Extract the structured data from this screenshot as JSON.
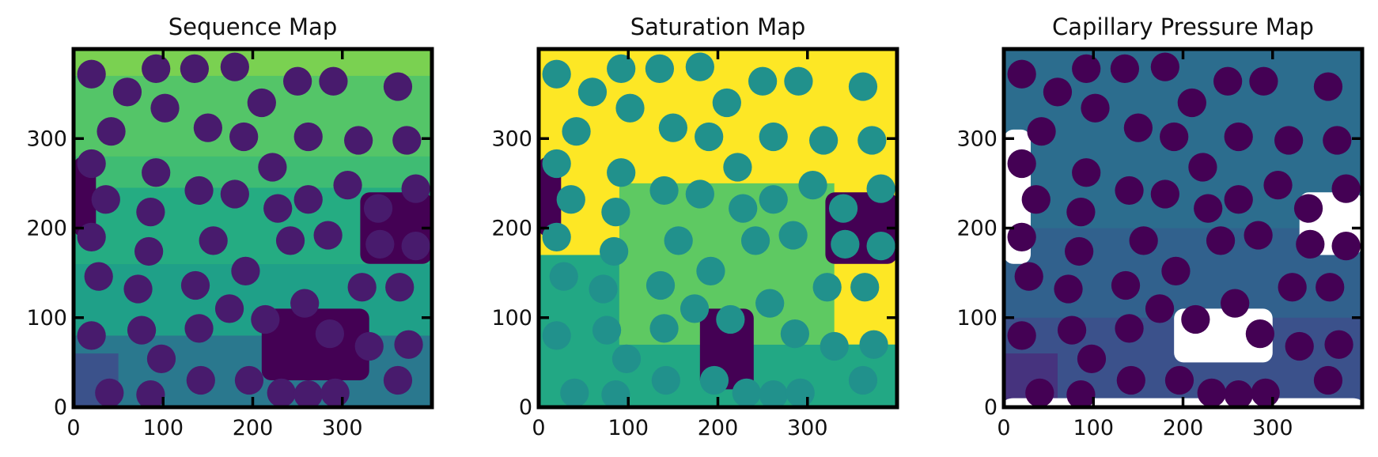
{
  "chart_data": [
    {
      "type": "heatmap",
      "title": "Sequence Map",
      "xlim": [
        0,
        400
      ],
      "ylim": [
        0,
        400
      ],
      "xticks": [
        0,
        100,
        200,
        300
      ],
      "yticks": [
        0,
        100,
        200,
        300
      ],
      "xtick_labels": [
        "0",
        "100",
        "200",
        "300"
      ],
      "ytick_labels": [
        "0",
        "100",
        "200",
        "300"
      ],
      "colormap": "viridis",
      "grid": false,
      "background_color": "#3fbc73",
      "grain_color": "#481b6d",
      "regions": [
        {
          "x": [
            0,
            400
          ],
          "y": [
            370,
            400
          ],
          "color": "#7ad151"
        },
        {
          "x": [
            0,
            400
          ],
          "y": [
            280,
            370
          ],
          "color": "#54c568"
        },
        {
          "x": [
            0,
            400
          ],
          "y": [
            160,
            245
          ],
          "color": "#25ac82"
        },
        {
          "x": [
            0,
            400
          ],
          "y": [
            80,
            160
          ],
          "color": "#1fa088"
        },
        {
          "x": [
            0,
            400
          ],
          "y": [
            0,
            80
          ],
          "color": "#2a788e"
        },
        {
          "x": [
            0,
            50
          ],
          "y": [
            0,
            60
          ],
          "color": "#3b528b"
        }
      ],
      "pores": [
        {
          "x": 0,
          "y": 190,
          "w": 25,
          "h": 90,
          "color": "#440154"
        },
        {
          "x": 210,
          "y": 30,
          "w": 120,
          "h": 80,
          "color": "#440154"
        },
        {
          "x": 320,
          "y": 160,
          "w": 80,
          "h": 80,
          "color": "#440154"
        }
      ]
    },
    {
      "type": "heatmap",
      "title": "Saturation Map",
      "xlim": [
        0,
        400
      ],
      "ylim": [
        0,
        400
      ],
      "xticks": [
        0,
        100,
        200,
        300
      ],
      "yticks": [
        0,
        100,
        200,
        300
      ],
      "xtick_labels": [
        "0",
        "100",
        "200",
        "300"
      ],
      "ytick_labels": [
        "0",
        "100",
        "200",
        "300"
      ],
      "colormap": "viridis",
      "grid": false,
      "background_color": "#fde725",
      "grain_color": "#21918c",
      "regions": [
        {
          "x": [
            90,
            330
          ],
          "y": [
            70,
            250
          ],
          "color": "#5ec962"
        },
        {
          "x": [
            0,
            400
          ],
          "y": [
            0,
            70
          ],
          "color": "#22a884"
        },
        {
          "x": [
            0,
            90
          ],
          "y": [
            0,
            170
          ],
          "color": "#22a884"
        }
      ],
      "pores": [
        {
          "x": 0,
          "y": 190,
          "w": 25,
          "h": 90,
          "color": "#440154"
        },
        {
          "x": 180,
          "y": 20,
          "w": 60,
          "h": 90,
          "color": "#440154"
        },
        {
          "x": 320,
          "y": 160,
          "w": 80,
          "h": 80,
          "color": "#440154"
        }
      ]
    },
    {
      "type": "heatmap",
      "title": "Capillary Pressure Map",
      "xlim": [
        0,
        400
      ],
      "ylim": [
        0,
        400
      ],
      "xticks": [
        0,
        100,
        200,
        300
      ],
      "yticks": [
        0,
        100,
        200,
        300
      ],
      "xtick_labels": [
        "0",
        "100",
        "200",
        "300"
      ],
      "ytick_labels": [
        "0",
        "100",
        "200",
        "300"
      ],
      "colormap": "viridis",
      "grid": false,
      "background_color": "#2c6d8e",
      "grain_color": "#440154",
      "regions": [
        {
          "x": [
            0,
            400
          ],
          "y": [
            100,
            200
          ],
          "color": "#31618d"
        },
        {
          "x": [
            0,
            400
          ],
          "y": [
            0,
            100
          ],
          "color": "#3b518b"
        },
        {
          "x": [
            0,
            60
          ],
          "y": [
            0,
            60
          ],
          "color": "#46337e"
        }
      ],
      "pores": [
        {
          "x": 0,
          "y": 160,
          "w": 30,
          "h": 150,
          "color": "#ffffff"
        },
        {
          "x": 190,
          "y": 50,
          "w": 110,
          "h": 60,
          "color": "#ffffff"
        },
        {
          "x": 330,
          "y": 170,
          "w": 70,
          "h": 70,
          "color": "#ffffff"
        },
        {
          "x": 0,
          "y": 0,
          "w": 400,
          "h": 10,
          "color": "#ffffff"
        }
      ]
    }
  ],
  "grains": [
    [
      20,
      372
    ],
    [
      60,
      352
    ],
    [
      92,
      378
    ],
    [
      135,
      378
    ],
    [
      180,
      380
    ],
    [
      102,
      334
    ],
    [
      250,
      364
    ],
    [
      290,
      364
    ],
    [
      362,
      358
    ],
    [
      42,
      308
    ],
    [
      150,
      312
    ],
    [
      190,
      302
    ],
    [
      210,
      340
    ],
    [
      262,
      302
    ],
    [
      318,
      298
    ],
    [
      372,
      298
    ],
    [
      20,
      272
    ],
    [
      92,
      262
    ],
    [
      222,
      268
    ],
    [
      36,
      232
    ],
    [
      140,
      242
    ],
    [
      180,
      238
    ],
    [
      228,
      222
    ],
    [
      262,
      232
    ],
    [
      306,
      248
    ],
    [
      340,
      222
    ],
    [
      382,
      244
    ],
    [
      86,
      218
    ],
    [
      20,
      190
    ],
    [
      156,
      186
    ],
    [
      242,
      186
    ],
    [
      284,
      192
    ],
    [
      342,
      182
    ],
    [
      382,
      180
    ],
    [
      84,
      174
    ],
    [
      28,
      146
    ],
    [
      192,
      152
    ],
    [
      72,
      132
    ],
    [
      136,
      136
    ],
    [
      322,
      134
    ],
    [
      364,
      134
    ],
    [
      174,
      110
    ],
    [
      214,
      98
    ],
    [
      258,
      116
    ],
    [
      20,
      80
    ],
    [
      76,
      86
    ],
    [
      140,
      88
    ],
    [
      286,
      82
    ],
    [
      330,
      68
    ],
    [
      374,
      70
    ],
    [
      98,
      54
    ],
    [
      40,
      16
    ],
    [
      86,
      14
    ],
    [
      142,
      30
    ],
    [
      196,
      30
    ],
    [
      232,
      16
    ],
    [
      262,
      14
    ],
    [
      292,
      16
    ],
    [
      362,
      30
    ]
  ]
}
